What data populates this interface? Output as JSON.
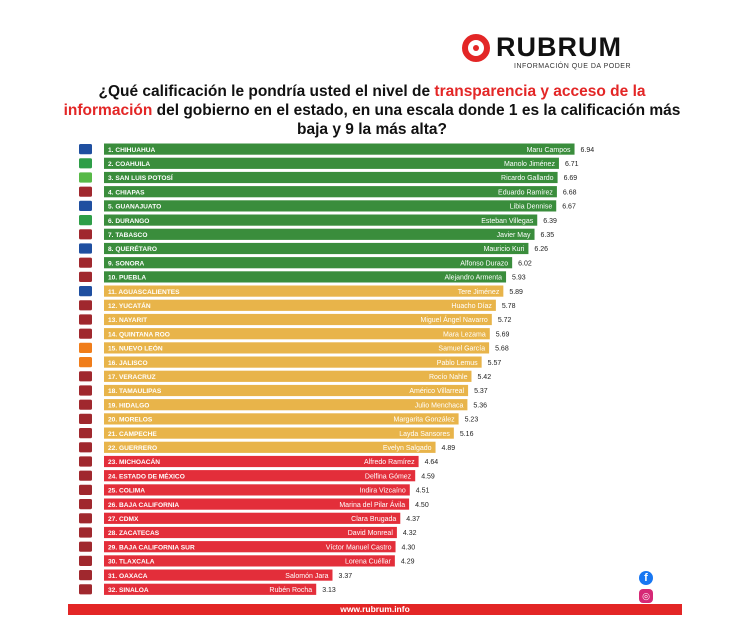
{
  "brand": {
    "name": "RUBRUM",
    "tagline": "INFORMACIÓN QUE DA PODER"
  },
  "title": {
    "part1": "¿Qué calificación le pondría usted el nivel de ",
    "highlight1": "transparencia y acceso de la información",
    "part2": " del gobierno en el estado, en una escala donde 1 es la calificación más baja y 9 la más alta?"
  },
  "footer": {
    "url": "www.rubrum.info"
  },
  "social": {
    "facebook": "f",
    "instagram": "◎"
  },
  "colors": {
    "green": "#3a8d3c",
    "yellow": "#e8b44a",
    "red": "#e32e3a",
    "accent": "#e32626"
  },
  "chart_data": {
    "type": "bar",
    "orientation": "horizontal",
    "xlim": [
      0,
      9
    ],
    "categories": [
      "1. CHIHUAHUA",
      "2. COAHUILA",
      "3. SAN LUIS POTOSÍ",
      "4. CHIAPAS",
      "5. GUANAJUATO",
      "6. DURANGO",
      "7. TABASCO",
      "8. QUERÉTARO",
      "9. SONORA",
      "10. PUEBLA",
      "11. AGUASCALIENTES",
      "12. YUCATÁN",
      "13. NAYARIT",
      "14. QUINTANA ROO",
      "15. NUEVO LEÓN",
      "16. JALISCO",
      "17. VERACRUZ",
      "18. TAMAULIPAS",
      "19. HIDALGO",
      "20. MORELOS",
      "21. CAMPECHE",
      "22. GUERRERO",
      "23. MICHOACÁN",
      "24. ESTADO DE MÉXICO",
      "25. COLIMA",
      "26. BAJA CALIFORNIA",
      "27. CDMX",
      "28. ZACATECAS",
      "29. BAJA CALIFORNIA SUR",
      "30. TLAXCALA",
      "31. OAXACA",
      "32. SINALOA"
    ],
    "governors": [
      "Maru Campos",
      "Manolo Jiménez",
      "Ricardo Gallardo",
      "Eduardo Ramírez",
      "Libia Dennise",
      "Esteban Villegas",
      "Javier May",
      "Mauricio Kuri",
      "Alfonso Durazo",
      "Alejandro Armenta",
      "Tere Jiménez",
      "Huacho Díaz",
      "Miguel Ángel Navarro",
      "Mara Lezama",
      "Samuel García",
      "Pablo Lemus",
      "Rocío Nahle",
      "Américo Villarreal",
      "Julio Menchaca",
      "Margarita González",
      "Layda Sansores",
      "Evelyn Salgado",
      "Alfredo Ramírez",
      "Delfina Gómez",
      "Indira Vizcaíno",
      "Marina del Pilar Ávila",
      "Clara Brugada",
      "David Monreal",
      "Víctor Manuel Castro",
      "Lorena Cuéllar",
      "Salomón Jara",
      "Rubén Rocha"
    ],
    "values": [
      6.94,
      6.71,
      6.69,
      6.68,
      6.67,
      6.39,
      6.35,
      6.26,
      6.02,
      5.93,
      5.89,
      5.78,
      5.72,
      5.69,
      5.68,
      5.57,
      5.42,
      5.37,
      5.36,
      5.23,
      5.16,
      4.89,
      4.64,
      4.59,
      4.51,
      4.5,
      4.37,
      4.32,
      4.3,
      4.29,
      3.37,
      3.13
    ],
    "groups": [
      "green",
      "green",
      "green",
      "green",
      "green",
      "green",
      "green",
      "green",
      "green",
      "green",
      "yellow",
      "yellow",
      "yellow",
      "yellow",
      "yellow",
      "yellow",
      "yellow",
      "yellow",
      "yellow",
      "yellow",
      "yellow",
      "yellow",
      "red",
      "red",
      "red",
      "red",
      "red",
      "red",
      "red",
      "red",
      "red",
      "red"
    ],
    "parties": [
      "PAN",
      "PRI",
      "PVEM",
      "MORENA",
      "PAN",
      "PRI",
      "MORENA",
      "PAN",
      "MORENA",
      "MORENA",
      "PAN",
      "MORENA",
      "MORENA",
      "MORENA",
      "MC",
      "MC",
      "MORENA",
      "MORENA",
      "MORENA",
      "MORENA",
      "MORENA",
      "MORENA",
      "MORENA",
      "MORENA",
      "MORENA",
      "MORENA",
      "MORENA",
      "MORENA",
      "MORENA",
      "MORENA",
      "MORENA",
      "MORENA"
    ]
  }
}
